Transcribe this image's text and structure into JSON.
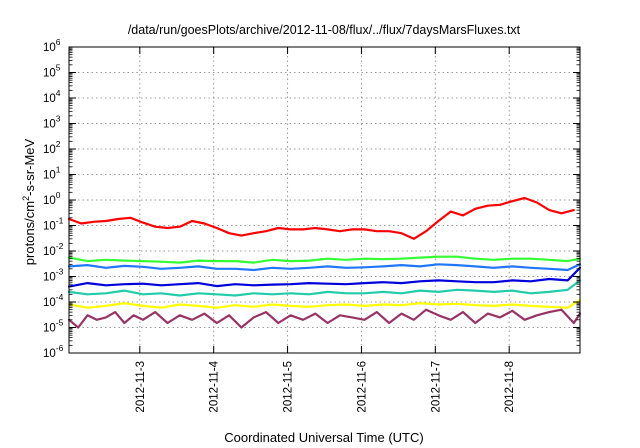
{
  "chart_data": {
    "type": "line",
    "title": "/data/run/goesPlots/archive/2012-11-08/flux/../flux/7daysMarsFluxes.txt",
    "xlabel": "Coordinated Universal Time (UTC)",
    "ylabel": {
      "base": "protons/cm",
      "sup": "2",
      "rest": "-s-sr-MeV"
    },
    "yscale": "log",
    "ylim": [
      -6,
      6
    ],
    "y_ticks": [
      {
        "mantissa": "10",
        "exponent": "6",
        "value": 6
      },
      {
        "mantissa": "10",
        "exponent": "5",
        "value": 5
      },
      {
        "mantissa": "10",
        "exponent": "4",
        "value": 4
      },
      {
        "mantissa": "10",
        "exponent": "3",
        "value": 3
      },
      {
        "mantissa": "10",
        "exponent": "2",
        "value": 2
      },
      {
        "mantissa": "10",
        "exponent": "1",
        "value": 1
      },
      {
        "mantissa": "10",
        "exponent": "0",
        "value": 0
      },
      {
        "mantissa": "10",
        "exponent": "-1",
        "value": -1
      },
      {
        "mantissa": "10",
        "exponent": "-2",
        "value": -2
      },
      {
        "mantissa": "10",
        "exponent": "-3",
        "value": -3
      },
      {
        "mantissa": "10",
        "exponent": "-4",
        "value": -4
      },
      {
        "mantissa": "10",
        "exponent": "-5",
        "value": -5
      },
      {
        "mantissa": "10",
        "exponent": "-6",
        "value": -6
      }
    ],
    "xlim": [
      "2012-11-02T01:00",
      "2012-11-08T23:00"
    ],
    "x_ticks": [
      {
        "label": "2012-11-3",
        "value": "2012-11-03T00:00"
      },
      {
        "label": "2012-11-4",
        "value": "2012-11-04T00:00"
      },
      {
        "label": "2012-11-5",
        "value": "2012-11-05T00:00"
      },
      {
        "label": "2012-11-6",
        "value": "2012-11-06T00:00"
      },
      {
        "label": "2012-11-7",
        "value": "2012-11-07T00:00"
      },
      {
        "label": "2012-11-8",
        "value": "2012-11-08T00:00"
      }
    ],
    "grid": true,
    "grid_style": "dotted",
    "legend": "none",
    "series": [
      {
        "color": "#ff0000",
        "x": [
          "2012-11-02T01:00",
          "2012-11-02T05:00",
          "2012-11-02T09:00",
          "2012-11-02T13:00",
          "2012-11-02T17:00",
          "2012-11-02T21:00",
          "2012-11-03T01:00",
          "2012-11-03T05:00",
          "2012-11-03T09:00",
          "2012-11-03T13:00",
          "2012-11-03T17:00",
          "2012-11-03T21:00",
          "2012-11-04T01:00",
          "2012-11-04T05:00",
          "2012-11-04T09:00",
          "2012-11-04T13:00",
          "2012-11-04T17:00",
          "2012-11-04T21:00",
          "2012-11-05T01:00",
          "2012-11-05T05:00",
          "2012-11-05T09:00",
          "2012-11-05T13:00",
          "2012-11-05T17:00",
          "2012-11-05T21:00",
          "2012-11-06T01:00",
          "2012-11-06T05:00",
          "2012-11-06T09:00",
          "2012-11-06T13:00",
          "2012-11-06T17:00",
          "2012-11-06T21:00",
          "2012-11-07T01:00",
          "2012-11-07T05:00",
          "2012-11-07T09:00",
          "2012-11-07T13:00",
          "2012-11-07T17:00",
          "2012-11-07T21:00",
          "2012-11-08T01:00",
          "2012-11-08T05:00",
          "2012-11-08T09:00",
          "2012-11-08T13:00",
          "2012-11-08T17:00",
          "2012-11-08T21:00"
        ],
        "y": [
          0.18,
          0.12,
          0.14,
          0.15,
          0.18,
          0.2,
          0.13,
          0.09,
          0.08,
          0.09,
          0.15,
          0.12,
          0.08,
          0.05,
          0.04,
          0.05,
          0.06,
          0.08,
          0.07,
          0.07,
          0.08,
          0.07,
          0.06,
          0.07,
          0.07,
          0.06,
          0.06,
          0.05,
          0.03,
          0.06,
          0.15,
          0.35,
          0.25,
          0.45,
          0.6,
          0.65,
          0.9,
          1.2,
          0.8,
          0.4,
          0.3,
          0.4
        ]
      },
      {
        "color": "#33ff33",
        "x": [
          "2012-11-02T01:00",
          "2012-11-02T07:00",
          "2012-11-02T13:00",
          "2012-11-02T19:00",
          "2012-11-03T01:00",
          "2012-11-03T07:00",
          "2012-11-03T13:00",
          "2012-11-03T19:00",
          "2012-11-04T01:00",
          "2012-11-04T07:00",
          "2012-11-04T13:00",
          "2012-11-04T19:00",
          "2012-11-05T01:00",
          "2012-11-05T07:00",
          "2012-11-05T13:00",
          "2012-11-05T19:00",
          "2012-11-06T01:00",
          "2012-11-06T07:00",
          "2012-11-06T13:00",
          "2012-11-06T19:00",
          "2012-11-07T01:00",
          "2012-11-07T07:00",
          "2012-11-07T13:00",
          "2012-11-07T19:00",
          "2012-11-08T01:00",
          "2012-11-08T07:00",
          "2012-11-08T13:00",
          "2012-11-08T19:00",
          "2012-11-08T23:00"
        ],
        "y": [
          0.0055,
          0.004,
          0.0045,
          0.0042,
          0.004,
          0.0038,
          0.0035,
          0.0042,
          0.004,
          0.004,
          0.0035,
          0.0045,
          0.004,
          0.0042,
          0.005,
          0.0045,
          0.005,
          0.0048,
          0.005,
          0.0055,
          0.006,
          0.006,
          0.005,
          0.0045,
          0.005,
          0.005,
          0.0045,
          0.004,
          0.005
        ]
      },
      {
        "color": "#1f77ff",
        "x": [
          "2012-11-02T01:00",
          "2012-11-02T07:00",
          "2012-11-02T13:00",
          "2012-11-02T19:00",
          "2012-11-03T01:00",
          "2012-11-03T07:00",
          "2012-11-03T13:00",
          "2012-11-03T19:00",
          "2012-11-04T01:00",
          "2012-11-04T07:00",
          "2012-11-04T13:00",
          "2012-11-04T19:00",
          "2012-11-05T01:00",
          "2012-11-05T07:00",
          "2012-11-05T13:00",
          "2012-11-05T19:00",
          "2012-11-06T01:00",
          "2012-11-06T07:00",
          "2012-11-06T13:00",
          "2012-11-06T19:00",
          "2012-11-07T01:00",
          "2012-11-07T07:00",
          "2012-11-07T13:00",
          "2012-11-07T19:00",
          "2012-11-08T01:00",
          "2012-11-08T07:00",
          "2012-11-08T13:00",
          "2012-11-08T19:00",
          "2012-11-08T23:00"
        ],
        "y": [
          0.0025,
          0.0028,
          0.0022,
          0.0026,
          0.0024,
          0.002,
          0.0022,
          0.0025,
          0.002,
          0.002,
          0.0018,
          0.0022,
          0.002,
          0.0022,
          0.0025,
          0.0022,
          0.0023,
          0.0025,
          0.0028,
          0.0025,
          0.003,
          0.0028,
          0.0025,
          0.0022,
          0.0025,
          0.0022,
          0.002,
          0.0018,
          0.003
        ]
      },
      {
        "color": "#0000dd",
        "x": [
          "2012-11-02T01:00",
          "2012-11-02T07:00",
          "2012-11-02T13:00",
          "2012-11-02T19:00",
          "2012-11-03T01:00",
          "2012-11-03T07:00",
          "2012-11-03T13:00",
          "2012-11-03T19:00",
          "2012-11-04T01:00",
          "2012-11-04T07:00",
          "2012-11-04T13:00",
          "2012-11-04T19:00",
          "2012-11-05T01:00",
          "2012-11-05T07:00",
          "2012-11-05T13:00",
          "2012-11-05T19:00",
          "2012-11-06T01:00",
          "2012-11-06T07:00",
          "2012-11-06T13:00",
          "2012-11-06T19:00",
          "2012-11-07T01:00",
          "2012-11-07T07:00",
          "2012-11-07T13:00",
          "2012-11-07T19:00",
          "2012-11-08T01:00",
          "2012-11-08T07:00",
          "2012-11-08T13:00",
          "2012-11-08T19:00",
          "2012-11-08T23:00"
        ],
        "y": [
          0.0004,
          0.00055,
          0.00045,
          0.0005,
          0.00052,
          0.00045,
          0.0005,
          0.00055,
          0.00042,
          0.0005,
          0.00045,
          0.00048,
          0.0005,
          0.00055,
          0.00052,
          0.0005,
          0.00055,
          0.0006,
          0.00055,
          0.00065,
          0.0007,
          0.00065,
          0.0006,
          0.0006,
          0.0007,
          0.00065,
          0.0008,
          0.0007,
          0.0022
        ]
      },
      {
        "color": "#22ccaa",
        "x": [
          "2012-11-02T01:00",
          "2012-11-02T07:00",
          "2012-11-02T13:00",
          "2012-11-02T19:00",
          "2012-11-03T01:00",
          "2012-11-03T07:00",
          "2012-11-03T13:00",
          "2012-11-03T19:00",
          "2012-11-04T01:00",
          "2012-11-04T07:00",
          "2012-11-04T13:00",
          "2012-11-04T19:00",
          "2012-11-05T01:00",
          "2012-11-05T07:00",
          "2012-11-05T13:00",
          "2012-11-05T19:00",
          "2012-11-06T01:00",
          "2012-11-06T07:00",
          "2012-11-06T13:00",
          "2012-11-06T19:00",
          "2012-11-07T01:00",
          "2012-11-07T07:00",
          "2012-11-07T13:00",
          "2012-11-07T19:00",
          "2012-11-08T01:00",
          "2012-11-08T07:00",
          "2012-11-08T13:00",
          "2012-11-08T19:00",
          "2012-11-08T23:00"
        ],
        "y": [
          0.00025,
          0.0002,
          0.00022,
          0.00028,
          0.0002,
          0.00022,
          0.00018,
          0.00022,
          0.0002,
          0.00018,
          0.00022,
          0.0002,
          0.00022,
          0.0002,
          0.00025,
          0.00022,
          0.00022,
          0.00025,
          0.00022,
          0.00028,
          0.00025,
          0.0003,
          0.00028,
          0.00025,
          0.00028,
          0.00022,
          0.00025,
          0.0003,
          0.0007
        ]
      },
      {
        "color": "#ffff00",
        "x": [
          "2012-11-02T01:00",
          "2012-11-02T07:00",
          "2012-11-02T13:00",
          "2012-11-02T19:00",
          "2012-11-03T01:00",
          "2012-11-03T07:00",
          "2012-11-03T13:00",
          "2012-11-03T19:00",
          "2012-11-04T01:00",
          "2012-11-04T07:00",
          "2012-11-04T13:00",
          "2012-11-04T19:00",
          "2012-11-05T01:00",
          "2012-11-05T07:00",
          "2012-11-05T13:00",
          "2012-11-05T19:00",
          "2012-11-06T01:00",
          "2012-11-06T07:00",
          "2012-11-06T13:00",
          "2012-11-06T19:00",
          "2012-11-07T01:00",
          "2012-11-07T07:00",
          "2012-11-07T13:00",
          "2012-11-07T19:00",
          "2012-11-08T01:00",
          "2012-11-08T07:00",
          "2012-11-08T13:00",
          "2012-11-08T19:00",
          "2012-11-08T23:00"
        ],
        "y": [
          8e-05,
          6e-05,
          7e-05,
          9e-05,
          7e-05,
          6e-05,
          8e-05,
          7e-05,
          6e-05,
          7.5e-05,
          6.5e-05,
          8e-05,
          7e-05,
          6.5e-05,
          7.5e-05,
          8e-05,
          7e-05,
          8e-05,
          7.5e-05,
          9e-05,
          8e-05,
          8.5e-05,
          7.5e-05,
          7e-05,
          8e-05,
          7e-05,
          6.5e-05,
          6e-05,
          0.00012
        ]
      },
      {
        "color": "#993366",
        "x": [
          "2012-11-02T01:00",
          "2012-11-02T04:00",
          "2012-11-02T07:00",
          "2012-11-02T10:00",
          "2012-11-02T13:00",
          "2012-11-02T16:00",
          "2012-11-02T19:00",
          "2012-11-02T22:00",
          "2012-11-03T01:00",
          "2012-11-03T05:00",
          "2012-11-03T09:00",
          "2012-11-03T13:00",
          "2012-11-03T17:00",
          "2012-11-03T21:00",
          "2012-11-04T01:00",
          "2012-11-04T05:00",
          "2012-11-04T09:00",
          "2012-11-04T13:00",
          "2012-11-04T17:00",
          "2012-11-04T21:00",
          "2012-11-05T01:00",
          "2012-11-05T05:00",
          "2012-11-05T09:00",
          "2012-11-05T13:00",
          "2012-11-05T17:00",
          "2012-11-05T21:00",
          "2012-11-06T01:00",
          "2012-11-06T05:00",
          "2012-11-06T09:00",
          "2012-11-06T13:00",
          "2012-11-06T17:00",
          "2012-11-06T21:00",
          "2012-11-07T01:00",
          "2012-11-07T05:00",
          "2012-11-07T09:00",
          "2012-11-07T13:00",
          "2012-11-07T17:00",
          "2012-11-07T21:00",
          "2012-11-08T01:00",
          "2012-11-08T05:00",
          "2012-11-08T09:00",
          "2012-11-08T13:00",
          "2012-11-08T17:00",
          "2012-11-08T21:00",
          "2012-11-08T23:00"
        ],
        "y": [
          2e-05,
          1e-05,
          3e-05,
          2e-05,
          2.5e-05,
          4e-05,
          1.5e-05,
          3e-05,
          2e-05,
          4e-05,
          1.5e-05,
          3e-05,
          2e-05,
          3.5e-05,
          1.5e-05,
          3e-05,
          1e-05,
          2.5e-05,
          4e-05,
          1.5e-05,
          3e-05,
          2e-05,
          3.5e-05,
          1.5e-05,
          3e-05,
          2.5e-05,
          2e-05,
          4e-05,
          1.5e-05,
          3.5e-05,
          2e-05,
          5e-05,
          3e-05,
          2e-05,
          4e-05,
          1.5e-05,
          3.5e-05,
          2.5e-05,
          4.5e-05,
          2e-05,
          3e-05,
          4e-05,
          5e-05,
          1.5e-05,
          3.5e-05
        ]
      }
    ]
  }
}
